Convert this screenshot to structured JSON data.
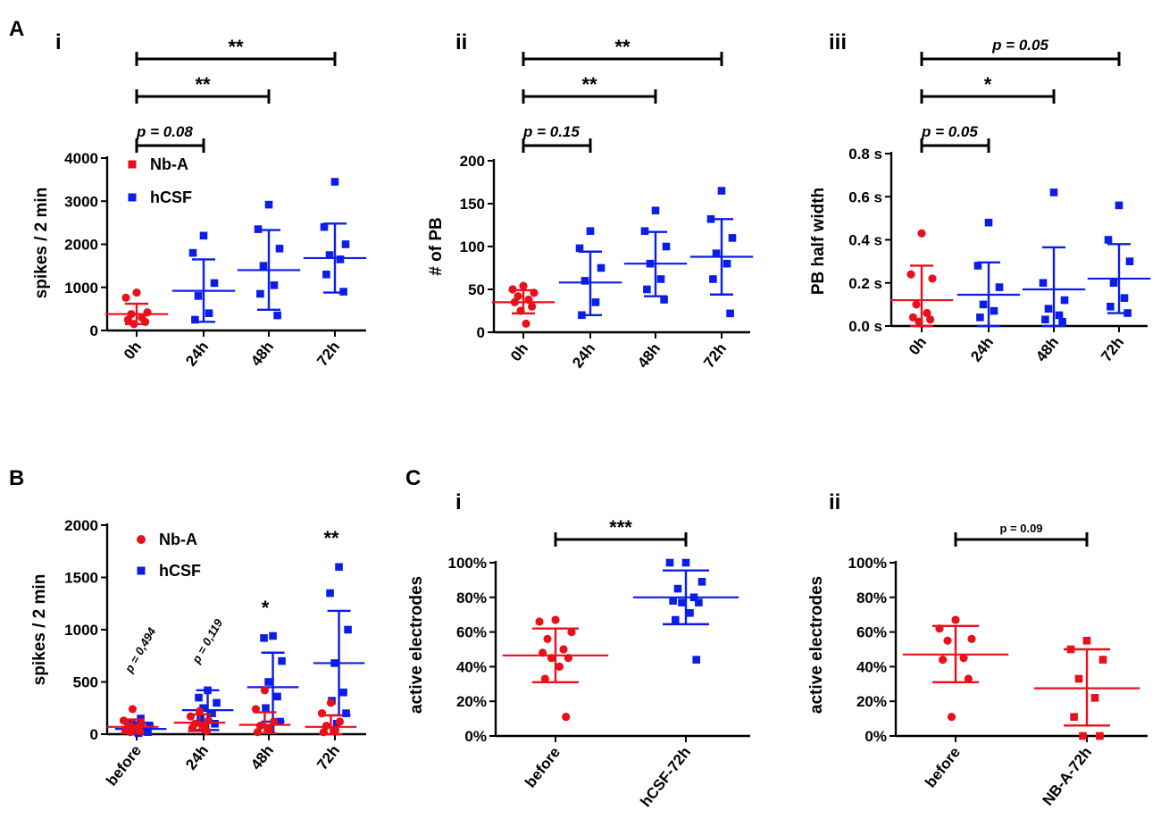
{
  "figure": {
    "panel_A": "A",
    "panel_B": "B",
    "panel_C": "C",
    "colors": {
      "red": "#e8101a",
      "blue": "#0a1ee6",
      "black": "#000000"
    }
  },
  "chart_data": [
    {
      "id": "Ai",
      "type": "scatter",
      "label": "i",
      "ylabel": "spikes / 2 min",
      "ylim": [
        0,
        4000
      ],
      "yticks": [
        0,
        1000,
        2000,
        3000,
        4000
      ],
      "ytick_labels": [
        "0",
        "1000",
        "2000",
        "3000",
        "4000"
      ],
      "categories": [
        "0h",
        "24h",
        "48h",
        "72h"
      ],
      "legend": [
        {
          "name": "Nb-A",
          "color": "#e8101a",
          "marker": "square"
        },
        {
          "name": "hCSF",
          "color": "#0a1ee6",
          "marker": "square"
        }
      ],
      "groups": [
        {
          "category": "0h",
          "color": "#e8101a",
          "marker": "circle",
          "mean": 380,
          "sd_low": 150,
          "sd_high": 620,
          "points": [
            880,
            760,
            420,
            380,
            300,
            250,
            200,
            150
          ]
        },
        {
          "category": "24h",
          "color": "#0a1ee6",
          "marker": "square",
          "mean": 920,
          "sd_low": 200,
          "sd_high": 1650,
          "points": [
            2200,
            1800,
            1100,
            800,
            400,
            250
          ]
        },
        {
          "category": "48h",
          "color": "#0a1ee6",
          "marker": "square",
          "mean": 1400,
          "sd_low": 480,
          "sd_high": 2330,
          "points": [
            2920,
            2350,
            1900,
            1500,
            1050,
            850,
            350
          ]
        },
        {
          "category": "72h",
          "color": "#0a1ee6",
          "marker": "square",
          "mean": 1680,
          "sd_low": 880,
          "sd_high": 2480,
          "points": [
            3450,
            2400,
            2000,
            1750,
            1650,
            1300,
            900
          ]
        }
      ],
      "comparisons": [
        {
          "from": "0h",
          "to": "24h",
          "label": "p = 0.08",
          "kind": "p"
        },
        {
          "from": "0h",
          "to": "48h",
          "label": "**",
          "kind": "stars"
        },
        {
          "from": "0h",
          "to": "72h",
          "label": "**",
          "kind": "stars"
        }
      ]
    },
    {
      "id": "Aii",
      "type": "scatter",
      "label": "ii",
      "ylabel": "# of PB",
      "ylim": [
        0,
        200
      ],
      "yticks": [
        0,
        50,
        100,
        150,
        200
      ],
      "ytick_labels": [
        "0",
        "50",
        "100",
        "150",
        "200"
      ],
      "categories": [
        "0h",
        "24h",
        "48h",
        "72h"
      ],
      "groups": [
        {
          "category": "0h",
          "color": "#e8101a",
          "marker": "circle",
          "mean": 35,
          "sd_low": 22,
          "sd_high": 49,
          "points": [
            54,
            50,
            46,
            42,
            38,
            35,
            30,
            25,
            10
          ]
        },
        {
          "category": "24h",
          "color": "#0a1ee6",
          "marker": "square",
          "mean": 58,
          "sd_low": 20,
          "sd_high": 94,
          "points": [
            118,
            98,
            75,
            60,
            35,
            20
          ]
        },
        {
          "category": "48h",
          "color": "#0a1ee6",
          "marker": "square",
          "mean": 80,
          "sd_low": 42,
          "sd_high": 117,
          "points": [
            142,
            118,
            100,
            80,
            62,
            50,
            38
          ]
        },
        {
          "category": "72h",
          "color": "#0a1ee6",
          "marker": "square",
          "mean": 88,
          "sd_low": 44,
          "sd_high": 132,
          "points": [
            165,
            132,
            110,
            92,
            80,
            62,
            22
          ]
        }
      ],
      "comparisons": [
        {
          "from": "0h",
          "to": "24h",
          "label": "p = 0.15",
          "kind": "p"
        },
        {
          "from": "0h",
          "to": "48h",
          "label": "**",
          "kind": "stars"
        },
        {
          "from": "0h",
          "to": "72h",
          "label": "**",
          "kind": "stars"
        }
      ]
    },
    {
      "id": "Aiii",
      "type": "scatter",
      "label": "iii",
      "ylabel": "PB half width",
      "ylim": [
        0,
        0.8
      ],
      "yticks": [
        0,
        0.2,
        0.4,
        0.6,
        0.8
      ],
      "ytick_labels": [
        "0.0 s",
        "0.2 s",
        "0.4 s",
        "0.6 s",
        "0.8 s"
      ],
      "categories": [
        "0h",
        "24h",
        "48h",
        "72h"
      ],
      "groups": [
        {
          "category": "0h",
          "color": "#e8101a",
          "marker": "circle",
          "mean": 0.12,
          "sd_low": 0.0,
          "sd_high": 0.28,
          "points": [
            0.43,
            0.24,
            0.22,
            0.1,
            0.06,
            0.04,
            0.03,
            0.02
          ]
        },
        {
          "category": "24h",
          "color": "#0a1ee6",
          "marker": "square",
          "mean": 0.145,
          "sd_low": 0.0,
          "sd_high": 0.295,
          "points": [
            0.48,
            0.28,
            0.18,
            0.1,
            0.07,
            0.04
          ]
        },
        {
          "category": "48h",
          "color": "#0a1ee6",
          "marker": "square",
          "mean": 0.17,
          "sd_low": 0.0,
          "sd_high": 0.365,
          "points": [
            0.62,
            0.2,
            0.12,
            0.08,
            0.05,
            0.03,
            0.02
          ]
        },
        {
          "category": "72h",
          "color": "#0a1ee6",
          "marker": "square",
          "mean": 0.22,
          "sd_low": 0.06,
          "sd_high": 0.38,
          "points": [
            0.56,
            0.4,
            0.3,
            0.2,
            0.13,
            0.09,
            0.06
          ]
        }
      ],
      "comparisons": [
        {
          "from": "0h",
          "to": "24h",
          "label": "p = 0.05",
          "kind": "p"
        },
        {
          "from": "0h",
          "to": "48h",
          "label": "*",
          "kind": "stars"
        },
        {
          "from": "0h",
          "to": "72h",
          "label": "p = 0.05",
          "kind": "p"
        }
      ]
    },
    {
      "id": "B",
      "type": "scatter",
      "label": "",
      "ylabel": "spikes / 2 min",
      "ylim": [
        0,
        2000
      ],
      "yticks": [
        0,
        500,
        1000,
        1500,
        2000
      ],
      "ytick_labels": [
        "0",
        "500",
        "1000",
        "1500",
        "2000"
      ],
      "categories": [
        "before",
        "24h",
        "48h",
        "72h"
      ],
      "legend": [
        {
          "name": "Nb-A",
          "color": "#e8101a",
          "marker": "circle"
        },
        {
          "name": "hCSF",
          "color": "#0a1ee6",
          "marker": "square"
        }
      ],
      "groups": [
        {
          "category": "before",
          "color": "#0a1ee6",
          "marker": "square",
          "offset": 0.12,
          "mean": 50,
          "sd_low": 0,
          "sd_high": 110,
          "points": [
            150,
            100,
            80,
            60,
            40,
            30,
            20,
            10
          ]
        },
        {
          "category": "before",
          "color": "#e8101a",
          "marker": "circle",
          "offset": -0.12,
          "mean": 70,
          "sd_low": 10,
          "sd_high": 140,
          "points": [
            240,
            130,
            100,
            80,
            60,
            40,
            30,
            20
          ]
        },
        {
          "category": "24h",
          "color": "#0a1ee6",
          "marker": "square",
          "offset": 0.12,
          "mean": 230,
          "sd_low": 40,
          "sd_high": 420,
          "points": [
            420,
            350,
            300,
            250,
            200,
            150,
            100,
            50
          ]
        },
        {
          "category": "24h",
          "color": "#e8101a",
          "marker": "circle",
          "offset": -0.12,
          "mean": 110,
          "sd_low": 30,
          "sd_high": 190,
          "points": [
            220,
            170,
            130,
            100,
            80,
            60,
            30
          ]
        },
        {
          "category": "48h",
          "color": "#0a1ee6",
          "marker": "square",
          "offset": 0.12,
          "mean": 450,
          "sd_low": 120,
          "sd_high": 780,
          "points": [
            940,
            920,
            700,
            500,
            360,
            250,
            120,
            50
          ]
        },
        {
          "category": "48h",
          "color": "#e8101a",
          "marker": "circle",
          "offset": -0.12,
          "mean": 90,
          "sd_low": 10,
          "sd_high": 210,
          "points": [
            420,
            240,
            120,
            80,
            50,
            20
          ]
        },
        {
          "category": "72h",
          "color": "#0a1ee6",
          "marker": "square",
          "offset": 0.12,
          "mean": 680,
          "sd_low": 180,
          "sd_high": 1180,
          "points": [
            1600,
            1350,
            1000,
            680,
            400,
            320,
            200,
            100
          ]
        },
        {
          "category": "72h",
          "color": "#e8101a",
          "marker": "circle",
          "offset": -0.12,
          "mean": 70,
          "sd_low": 0,
          "sd_high": 180,
          "points": [
            300,
            200,
            120,
            80,
            40,
            20
          ]
        }
      ],
      "annotations": [
        {
          "category": "before",
          "label": "p = 0,494",
          "kind": "rot"
        },
        {
          "category": "24h",
          "label": "p = 0,119",
          "kind": "rot"
        },
        {
          "category": "48h",
          "label": "*",
          "kind": "stars"
        },
        {
          "category": "72h",
          "label": "**",
          "kind": "stars"
        }
      ]
    },
    {
      "id": "Ci",
      "type": "scatter",
      "label": "i",
      "ylabel": "active electrodes",
      "ylim": [
        0,
        100
      ],
      "yticks": [
        0,
        20,
        40,
        60,
        80,
        100
      ],
      "ytick_labels": [
        "0%",
        "20%",
        "40%",
        "60%",
        "80%",
        "100%"
      ],
      "categories": [
        "before",
        "hCSF-72h"
      ],
      "groups": [
        {
          "category": "before",
          "color": "#e8101a",
          "marker": "circle",
          "mean": 46.5,
          "sd_low": 31,
          "sd_high": 62,
          "points": [
            67,
            66,
            60,
            56,
            50,
            48,
            45,
            45,
            40,
            33,
            11
          ]
        },
        {
          "category": "hCSF-72h",
          "color": "#0a1ee6",
          "marker": "square",
          "mean": 80,
          "sd_low": 64.5,
          "sd_high": 95.5,
          "points": [
            100,
            100,
            89,
            85,
            80,
            78,
            77,
            77,
            71,
            67,
            44
          ]
        }
      ],
      "comparisons": [
        {
          "from": "before",
          "to": "hCSF-72h",
          "label": "***",
          "kind": "stars"
        }
      ]
    },
    {
      "id": "Cii",
      "type": "scatter",
      "label": "ii",
      "ylabel": "active electrodes",
      "ylim": [
        0,
        100
      ],
      "yticks": [
        0,
        20,
        40,
        60,
        80,
        100
      ],
      "ytick_labels": [
        "0%",
        "20%",
        "40%",
        "60%",
        "80%",
        "100%"
      ],
      "categories": [
        "before",
        "NB-A-72h"
      ],
      "groups": [
        {
          "category": "before",
          "color": "#e8101a",
          "marker": "circle",
          "mean": 47,
          "sd_low": 31,
          "sd_high": 63.5,
          "points": [
            67,
            62,
            56,
            55,
            45,
            44,
            33,
            11
          ]
        },
        {
          "category": "NB-A-72h",
          "color": "#e8101a",
          "marker": "square",
          "mean": 27.5,
          "sd_low": 6,
          "sd_high": 50,
          "points": [
            55,
            50,
            44,
            33,
            22,
            11,
            0,
            0
          ]
        }
      ],
      "comparisons": [
        {
          "from": "before",
          "to": "NB-A-72h",
          "label": "p = 0.09",
          "kind": "psmall"
        }
      ]
    }
  ]
}
